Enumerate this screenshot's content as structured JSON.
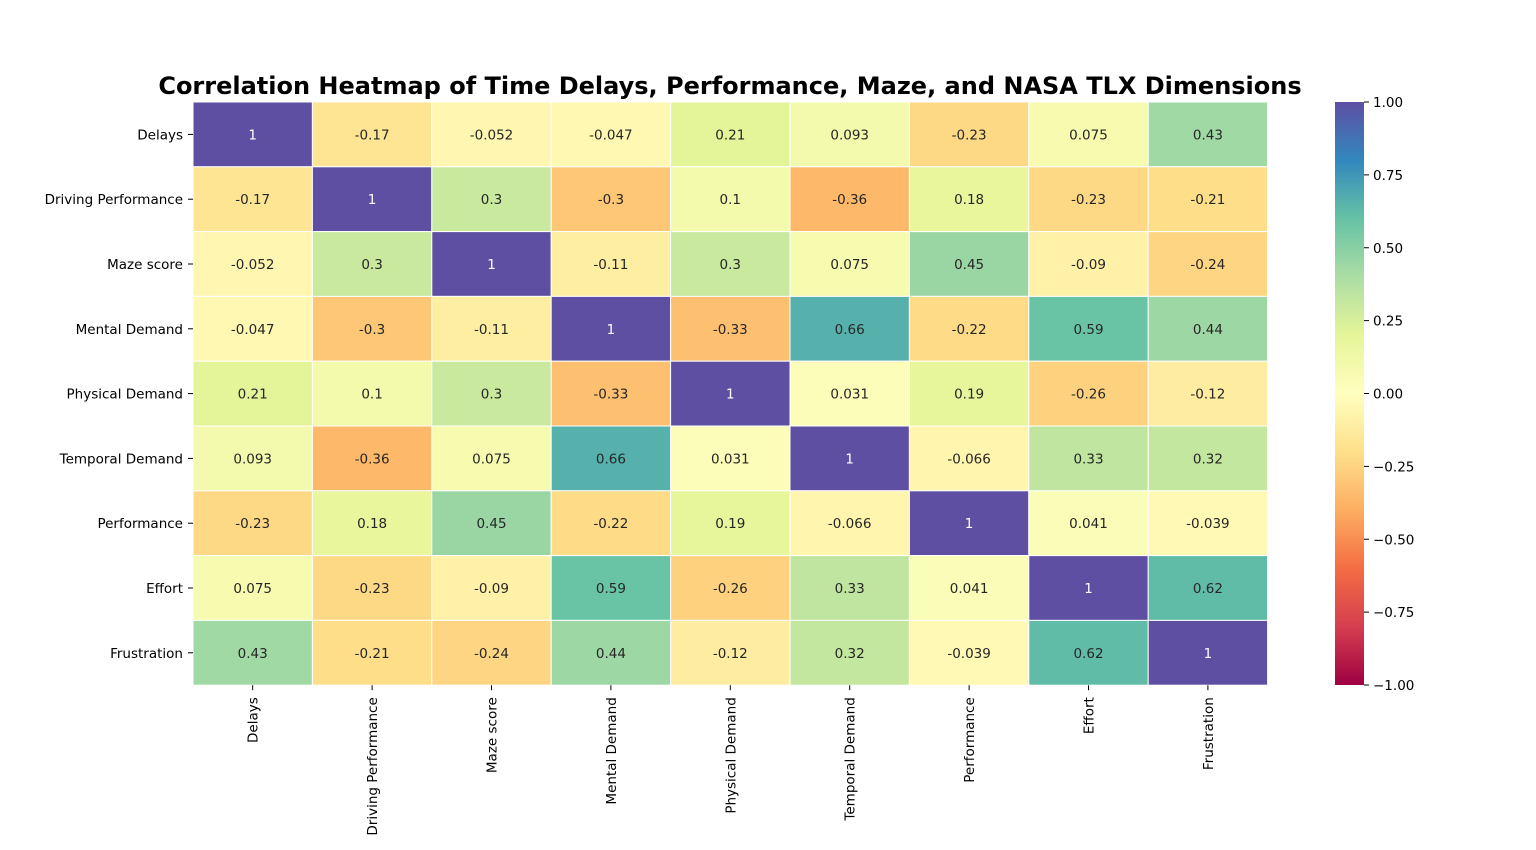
{
  "chart_data": {
    "type": "heatmap",
    "title": "Correlation Heatmap of Time Delays, Performance, Maze, and NASA TLX Dimensions",
    "row_labels": [
      "Delays",
      "Driving Performance",
      "Maze score",
      "Mental Demand",
      "Physical Demand",
      "Temporal Demand",
      "Performance",
      "Effort",
      "Frustration"
    ],
    "col_labels": [
      "Delays",
      "Driving Performance",
      "Maze score",
      "Mental Demand",
      "Physical Demand",
      "Temporal Demand",
      "Performance",
      "Effort",
      "Frustration"
    ],
    "values": [
      [
        1,
        -0.17,
        -0.052,
        -0.047,
        0.21,
        0.093,
        -0.23,
        0.075,
        0.43
      ],
      [
        -0.17,
        1,
        0.3,
        -0.3,
        0.1,
        -0.36,
        0.18,
        -0.23,
        -0.21
      ],
      [
        -0.052,
        0.3,
        1,
        -0.11,
        0.3,
        0.075,
        0.45,
        -0.09,
        -0.24
      ],
      [
        -0.047,
        -0.3,
        -0.11,
        1,
        -0.33,
        0.66,
        -0.22,
        0.59,
        0.44
      ],
      [
        0.21,
        0.1,
        0.3,
        -0.33,
        1,
        0.031,
        0.19,
        -0.26,
        -0.12
      ],
      [
        0.093,
        -0.36,
        0.075,
        0.66,
        0.031,
        1,
        -0.066,
        0.33,
        0.32
      ],
      [
        -0.23,
        0.18,
        0.45,
        -0.22,
        0.19,
        -0.066,
        1,
        0.041,
        -0.039
      ],
      [
        0.075,
        -0.23,
        -0.09,
        0.59,
        -0.26,
        0.33,
        0.041,
        1,
        0.62
      ],
      [
        0.43,
        -0.21,
        -0.24,
        0.44,
        -0.12,
        0.32,
        -0.039,
        0.62,
        1
      ]
    ],
    "value_labels": [
      [
        "1",
        "-0.17",
        "-0.052",
        "-0.047",
        "0.21",
        "0.093",
        "-0.23",
        "0.075",
        "0.43"
      ],
      [
        "-0.17",
        "1",
        "0.3",
        "-0.3",
        "0.1",
        "-0.36",
        "0.18",
        "-0.23",
        "-0.21"
      ],
      [
        "-0.052",
        "0.3",
        "1",
        "-0.11",
        "0.3",
        "0.075",
        "0.45",
        "-0.09",
        "-0.24"
      ],
      [
        "-0.047",
        "-0.3",
        "-0.11",
        "1",
        "-0.33",
        "0.66",
        "-0.22",
        "0.59",
        "0.44"
      ],
      [
        "0.21",
        "0.1",
        "0.3",
        "-0.33",
        "1",
        "0.031",
        "0.19",
        "-0.26",
        "-0.12"
      ],
      [
        "0.093",
        "-0.36",
        "0.075",
        "0.66",
        "0.031",
        "1",
        "-0.066",
        "0.33",
        "0.32"
      ],
      [
        "-0.23",
        "0.18",
        "0.45",
        "-0.22",
        "0.19",
        "-0.066",
        "1",
        "0.041",
        "-0.039"
      ],
      [
        "0.075",
        "-0.23",
        "-0.09",
        "0.59",
        "-0.26",
        "0.33",
        "0.041",
        "1",
        "0.62"
      ],
      [
        "0.43",
        "-0.21",
        "-0.24",
        "0.44",
        "-0.12",
        "0.32",
        "-0.039",
        "0.62",
        "1"
      ]
    ],
    "colorbar": {
      "range": [
        -1,
        1
      ],
      "ticks": [
        -1,
        -0.75,
        -0.5,
        -0.25,
        0,
        0.25,
        0.5,
        0.75,
        1
      ],
      "tick_labels": [
        "−1.00",
        "−0.75",
        "−0.50",
        "−0.25",
        "0.00",
        "0.25",
        "0.50",
        "0.75",
        "1.00"
      ],
      "colormap": "Spectral",
      "stops": [
        [
          0.0,
          "#9e0142"
        ],
        [
          0.1,
          "#d53e4f"
        ],
        [
          0.2,
          "#f46d43"
        ],
        [
          0.3,
          "#fdae61"
        ],
        [
          0.4,
          "#fee08b"
        ],
        [
          0.5,
          "#ffffbf"
        ],
        [
          0.6,
          "#e6f598"
        ],
        [
          0.7,
          "#abdda4"
        ],
        [
          0.8,
          "#66c2a5"
        ],
        [
          0.9,
          "#3288bd"
        ],
        [
          1.0,
          "#5e4fa2"
        ]
      ]
    },
    "grid_line_color": "#ffffff",
    "text_color_light": "#ffffff",
    "text_color_dark": "#262626"
  }
}
